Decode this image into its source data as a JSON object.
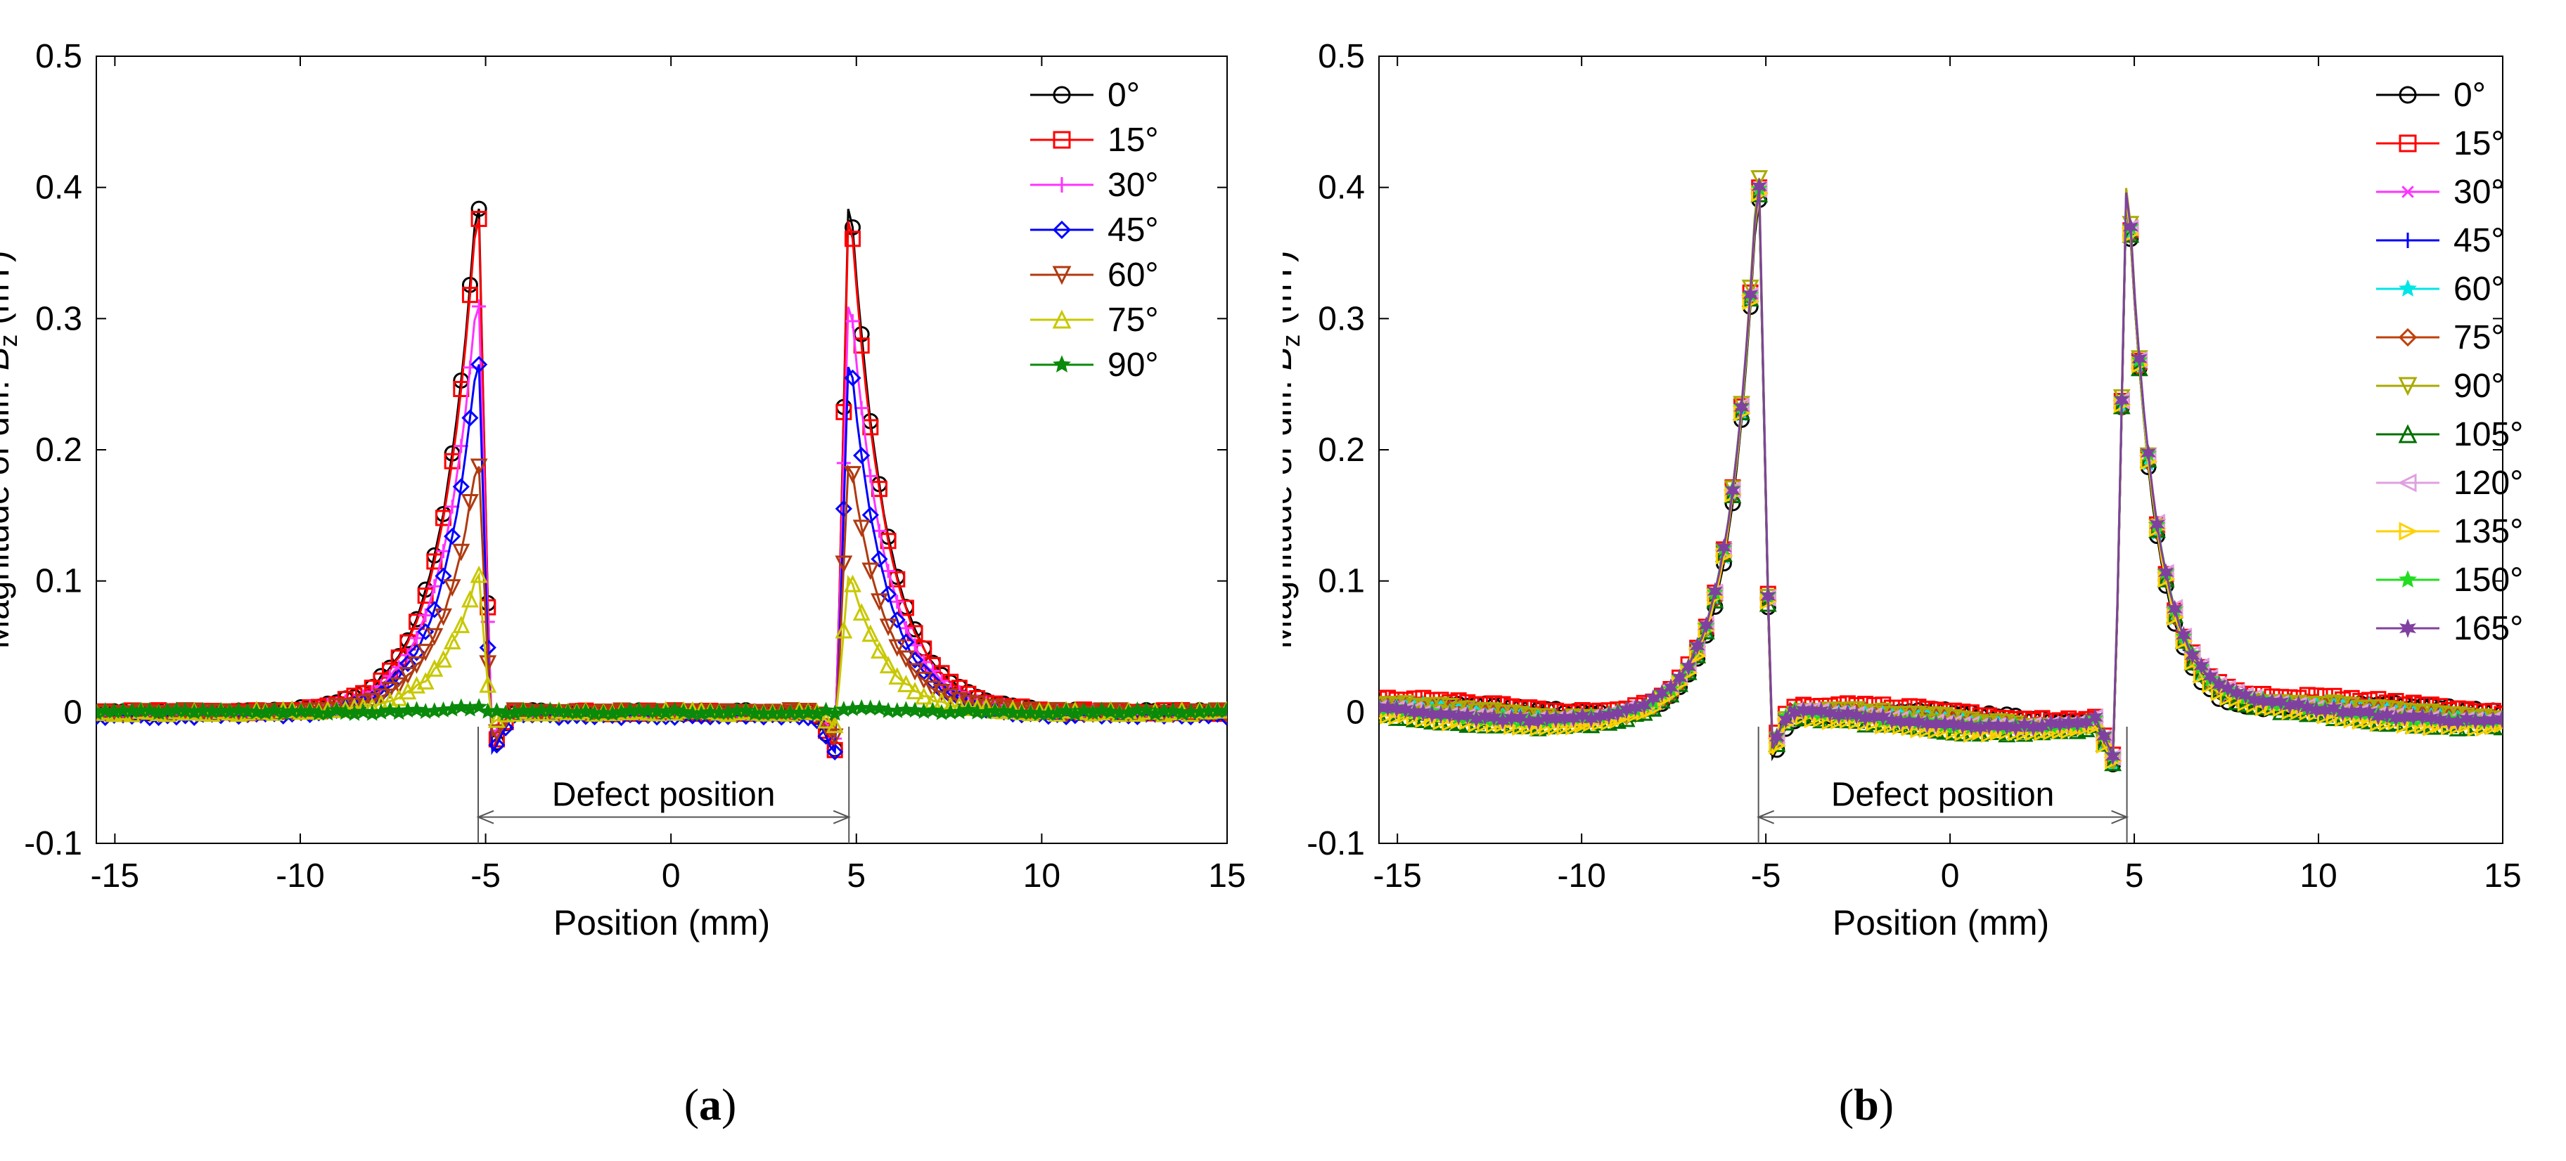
{
  "panels": [
    {
      "id": "a",
      "caption": "a",
      "xlabel": "Position (mm)",
      "ylabel_prefix": "Magnitude of diff. ",
      "ylabel_var": "B",
      "ylabel_sub": "z",
      "ylabel_suffix": " (mT)",
      "annotation": "Defect position"
    },
    {
      "id": "b",
      "caption": "b",
      "xlabel": "Position (mm)",
      "ylabel_prefix": "Magnitude of diff. ",
      "ylabel_var": "B",
      "ylabel_sub": "z",
      "ylabel_suffix": " (mT)",
      "annotation": "Defect position"
    }
  ],
  "chart_data": [
    {
      "type": "line",
      "panel": "a",
      "xlim": [
        -15.5,
        15
      ],
      "ylim": [
        -0.1,
        0.5
      ],
      "xticks": [
        -15,
        -10,
        -5,
        0,
        5,
        10,
        15
      ],
      "yticks": [
        -0.1,
        0,
        0.1,
        0.2,
        0.3,
        0.4,
        0.5
      ],
      "xtick_labels": [
        "-15",
        "-10",
        "-5",
        "0",
        "5",
        "10",
        "15"
      ],
      "ytick_labels": [
        "-0.1",
        "0",
        "0.1",
        "0.2",
        "0.3",
        "0.4",
        "0.5"
      ],
      "grid": false,
      "legend_position": "top-right",
      "defect_positions": [
        -5.2,
        4.8
      ],
      "peak_positions": [
        -5.2,
        4.8
      ],
      "series": [
        {
          "name": "0°",
          "color": "#000000",
          "marker": "circle",
          "peak": 0.41,
          "dip": -0.03,
          "baseline": 0.0
        },
        {
          "name": "15°",
          "color": "#ff0000",
          "marker": "square",
          "peak": 0.4,
          "dip": -0.03,
          "baseline": 0.0
        },
        {
          "name": "30°",
          "color": "#ff33ff",
          "marker": "plus",
          "peak": 0.33,
          "dip": -0.02,
          "baseline": 0.0
        },
        {
          "name": "45°",
          "color": "#0000ff",
          "marker": "diamond",
          "peak": 0.285,
          "dip": -0.03,
          "baseline": -0.003
        },
        {
          "name": "60°",
          "color": "#b03a10",
          "marker": "triangle-down",
          "peak": 0.2,
          "dip": -0.02,
          "baseline": 0.0
        },
        {
          "name": "75°",
          "color": "#c8c800",
          "marker": "triangle-up",
          "peak": 0.11,
          "dip": -0.01,
          "baseline": 0.0
        },
        {
          "name": "90°",
          "color": "#0a8a0a",
          "marker": "star",
          "peak": 0.004,
          "dip": 0.0,
          "baseline": 0.0
        }
      ]
    },
    {
      "type": "line",
      "panel": "b",
      "xlim": [
        -15.5,
        15
      ],
      "ylim": [
        -0.1,
        0.5
      ],
      "xticks": [
        -15,
        -10,
        -5,
        0,
        5,
        10,
        15
      ],
      "yticks": [
        -0.1,
        0,
        0.1,
        0.2,
        0.3,
        0.4,
        0.5
      ],
      "xtick_labels": [
        "-15",
        "-10",
        "-5",
        "0",
        "5",
        "10",
        "15"
      ],
      "ytick_labels": [
        "-0.1",
        "0",
        "0.1",
        "0.2",
        "0.3",
        "0.4",
        "0.5"
      ],
      "grid": false,
      "legend_position": "top-right",
      "defect_positions": [
        -5.2,
        4.8
      ],
      "peak_positions": [
        -5.2,
        4.8
      ],
      "series": [
        {
          "name": "0°",
          "color": "#000000",
          "marker": "circle",
          "peak": 0.42,
          "dip": -0.035,
          "baseline": 0.0
        },
        {
          "name": "15°",
          "color": "#ff0000",
          "marker": "square",
          "peak": 0.42,
          "dip": -0.035,
          "baseline": 0.005
        },
        {
          "name": "30°",
          "color": "#ff33ff",
          "marker": "x",
          "peak": 0.42,
          "dip": -0.035,
          "baseline": 0.0
        },
        {
          "name": "45°",
          "color": "#0000ff",
          "marker": "plus",
          "peak": 0.42,
          "dip": -0.035,
          "baseline": 0.0
        },
        {
          "name": "60°",
          "color": "#00e5e5",
          "marker": "star",
          "peak": 0.42,
          "dip": -0.035,
          "baseline": 0.0
        },
        {
          "name": "75°",
          "color": "#c0400a",
          "marker": "diamond",
          "peak": 0.42,
          "dip": -0.035,
          "baseline": 0.0
        },
        {
          "name": "90°",
          "color": "#aaaa00",
          "marker": "triangle-down",
          "peak": 0.43,
          "dip": -0.035,
          "baseline": 0.0
        },
        {
          "name": "105°",
          "color": "#007000",
          "marker": "triangle-up",
          "peak": 0.42,
          "dip": -0.035,
          "baseline": -0.005
        },
        {
          "name": "120°",
          "color": "#e0a0e0",
          "marker": "triangle-left",
          "peak": 0.42,
          "dip": -0.035,
          "baseline": 0.0
        },
        {
          "name": "135°",
          "color": "#ffd000",
          "marker": "triangle-right",
          "peak": 0.42,
          "dip": -0.035,
          "baseline": -0.005
        },
        {
          "name": "150°",
          "color": "#22dd22",
          "marker": "star",
          "peak": 0.42,
          "dip": -0.035,
          "baseline": 0.0
        },
        {
          "name": "165°",
          "color": "#8040a0",
          "marker": "hexagram",
          "peak": 0.42,
          "dip": -0.035,
          "baseline": 0.0
        }
      ]
    }
  ]
}
